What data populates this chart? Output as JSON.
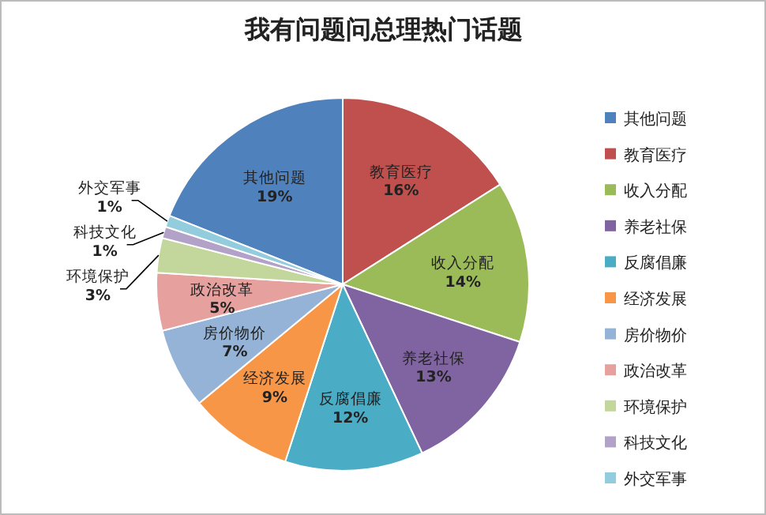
{
  "chart_data": {
    "type": "pie",
    "title": "我有问题问总理热门话题",
    "categories": [
      "其他问题",
      "教育医疗",
      "收入分配",
      "养老社保",
      "反腐倡廉",
      "经济发展",
      "房价物价",
      "政治改革",
      "环境保护",
      "科技文化",
      "外交军事"
    ],
    "values": [
      19,
      16,
      14,
      13,
      12,
      9,
      7,
      5,
      3,
      1,
      1
    ],
    "value_labels": [
      "19%",
      "16%",
      "14%",
      "13%",
      "12%",
      "9%",
      "7%",
      "5%",
      "3%",
      "1%",
      "1%"
    ],
    "colors": [
      "#4f81bd",
      "#c0504d",
      "#9bbb59",
      "#8064a2",
      "#4bacc6",
      "#f79646",
      "#95b3d7",
      "#e6a09e",
      "#c3d69b",
      "#b3a2c7",
      "#93cddd"
    ],
    "legend": "right"
  }
}
